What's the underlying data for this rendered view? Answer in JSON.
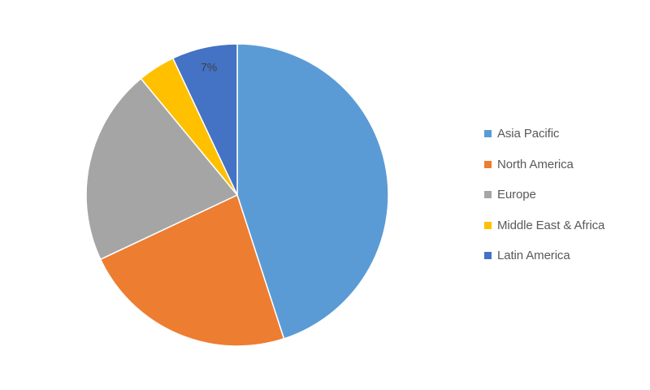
{
  "chart_data": {
    "type": "pie",
    "title": "",
    "start_angle_deg": 0,
    "direction": "clockwise",
    "categories": [
      "Asia Pacific",
      "North America",
      "Europe",
      "Middle East & Africa",
      "Latin America"
    ],
    "values": [
      45,
      23,
      21,
      4,
      7
    ],
    "unit": "%",
    "colors": [
      "#5B9BD5",
      "#ED7D31",
      "#A5A5A5",
      "#FFC000",
      "#4472C4"
    ],
    "data_labels": [
      {
        "category": "Latin America",
        "text": "7%"
      }
    ],
    "legend": {
      "position": "right",
      "items": [
        {
          "label": "Asia Pacific",
          "color": "#5B9BD5"
        },
        {
          "label": "North America",
          "color": "#ED7D31"
        },
        {
          "label": "Europe",
          "color": "#A5A5A5"
        },
        {
          "label": "Middle East & Africa",
          "color": "#FFC000"
        },
        {
          "label": "Latin America",
          "color": "#4472C4"
        }
      ]
    }
  }
}
